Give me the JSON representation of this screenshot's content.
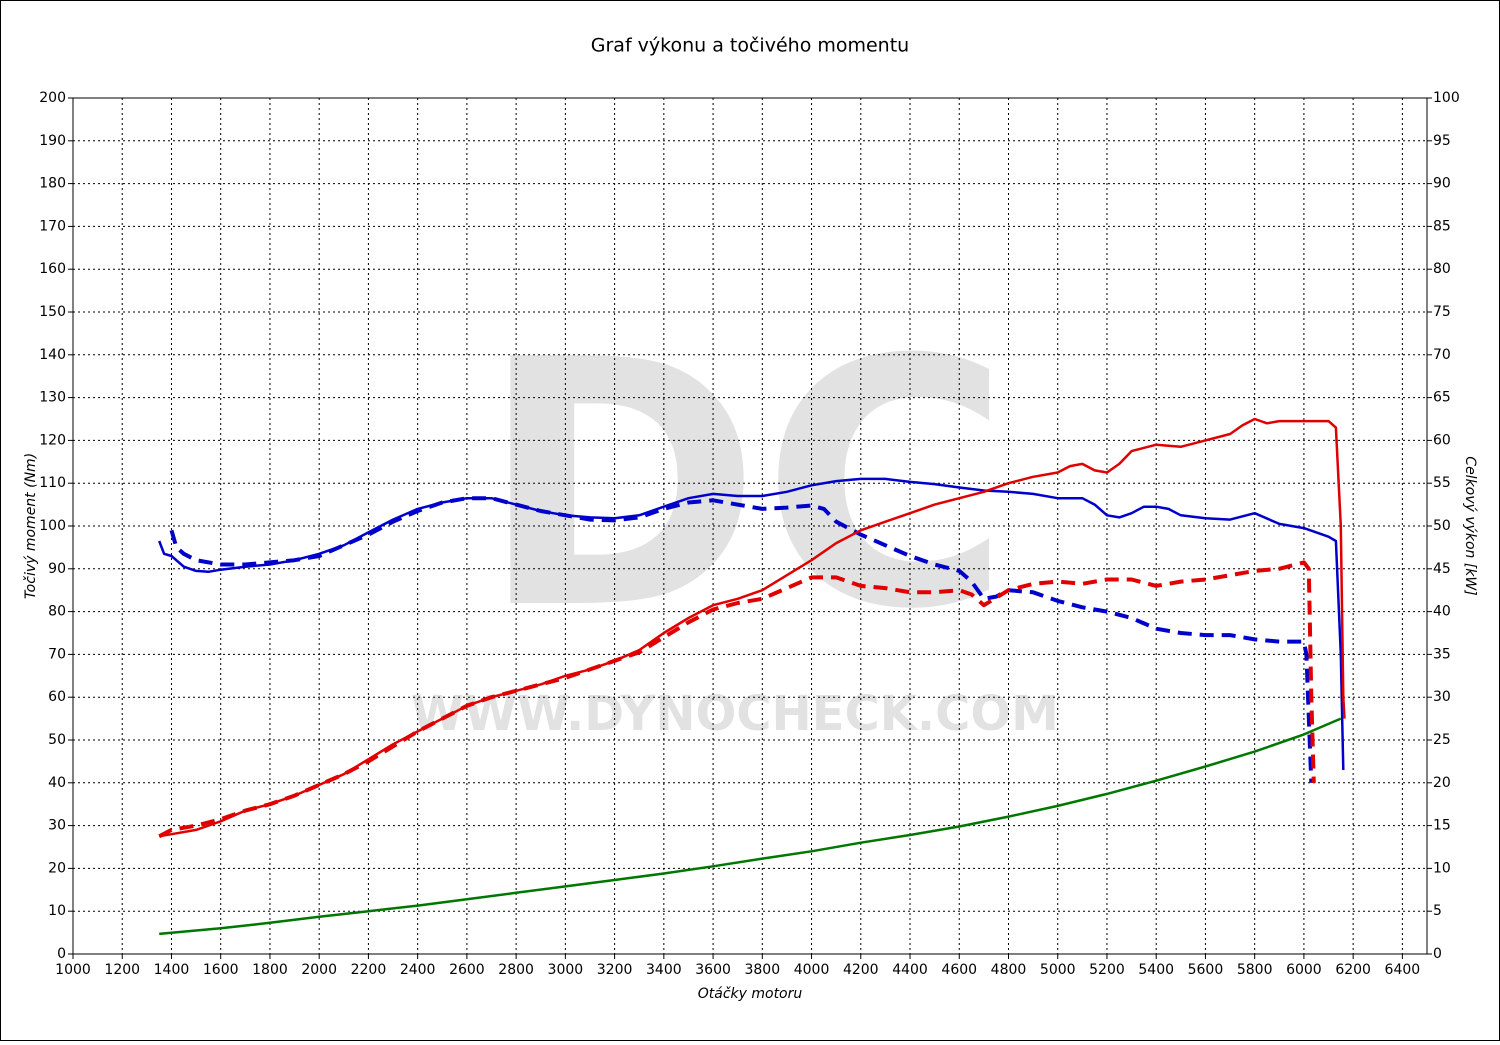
{
  "chart_data": {
    "type": "line",
    "title": "Graf výkonu a točivého momentu",
    "xlabel": "Otáčky motoru",
    "ylabel": "Točivý moment (Nm)",
    "y2label": "Celkový výkon [kW]",
    "watermark": "DC",
    "watermark_url": "WWW.DYNOCHECK.COM",
    "xlim": [
      1000,
      6500
    ],
    "xticks": [
      1000,
      1200,
      1400,
      1600,
      1800,
      2000,
      2200,
      2400,
      2600,
      2800,
      3000,
      3200,
      3400,
      3600,
      3800,
      4000,
      4200,
      4400,
      4600,
      4800,
      5000,
      5200,
      5400,
      5600,
      5800,
      6000,
      6200,
      6400
    ],
    "ylim": [
      0,
      200
    ],
    "yticks": [
      0,
      10,
      20,
      30,
      40,
      50,
      60,
      70,
      80,
      90,
      100,
      110,
      120,
      130,
      140,
      150,
      160,
      170,
      180,
      190,
      200
    ],
    "y2lim": [
      0,
      100
    ],
    "y2ticks": [
      0,
      5,
      10,
      15,
      20,
      25,
      30,
      35,
      40,
      45,
      50,
      55,
      60,
      65,
      70,
      75,
      80,
      85,
      90,
      95,
      100
    ],
    "grid": true,
    "series": [
      {
        "color": "#0000cc",
        "dash": false,
        "axis": "y",
        "x": [
          1350,
          1370,
          1400,
          1450,
          1500,
          1550,
          1600,
          1700,
          1800,
          1900,
          2000,
          2100,
          2200,
          2300,
          2400,
          2500,
          2600,
          2700,
          2800,
          2900,
          3000,
          3100,
          3200,
          3300,
          3400,
          3500,
          3600,
          3700,
          3800,
          3900,
          4000,
          4100,
          4200,
          4300,
          4400,
          4500,
          4600,
          4700,
          4800,
          4900,
          5000,
          5100,
          5150,
          5200,
          5250,
          5300,
          5350,
          5400,
          5450,
          5500,
          5600,
          5700,
          5800,
          5900,
          6000,
          6100,
          6130,
          6150,
          6160
        ],
        "values": [
          96.5,
          93.5,
          93,
          90.5,
          89.5,
          89.3,
          89.8,
          90.5,
          91,
          92,
          93.5,
          95.5,
          98.5,
          101.5,
          104,
          105.5,
          106.5,
          106.5,
          105,
          103.5,
          102.5,
          102,
          101.8,
          102.5,
          104.5,
          106.5,
          107.5,
          107,
          107,
          108,
          109.5,
          110.5,
          111,
          111,
          110.3,
          109.8,
          109,
          108.3,
          108,
          107.5,
          106.5,
          106.5,
          105,
          102.5,
          102,
          103,
          104.5,
          104.5,
          104,
          102.5,
          101.8,
          101.5,
          103,
          100.5,
          99.5,
          97.5,
          96.5,
          70,
          43
        ]
      },
      {
        "color": "#0000cc",
        "dash": true,
        "axis": "y",
        "x": [
          1400,
          1420,
          1450,
          1500,
          1600,
          1700,
          1800,
          1900,
          2000,
          2100,
          2200,
          2300,
          2400,
          2500,
          2600,
          2700,
          2800,
          2900,
          3000,
          3100,
          3200,
          3300,
          3400,
          3500,
          3600,
          3700,
          3800,
          3900,
          4000,
          4050,
          4100,
          4200,
          4300,
          4400,
          4500,
          4600,
          4650,
          4700,
          4750,
          4800,
          4900,
          5000,
          5100,
          5200,
          5300,
          5400,
          5500,
          5600,
          5700,
          5800,
          5900,
          6000,
          6010,
          6030
        ],
        "values": [
          99,
          95,
          93.5,
          92,
          91,
          91,
          91.5,
          92,
          93,
          95.5,
          98,
          101,
          103.5,
          105.5,
          106.5,
          106.5,
          105,
          103.5,
          102.5,
          101.5,
          101.3,
          102,
          104,
          105.5,
          106,
          105,
          104,
          104.3,
          104.8,
          104,
          101,
          98,
          95.5,
          93,
          91,
          89.5,
          87,
          83,
          83.5,
          85,
          84.5,
          82.5,
          81,
          80,
          78.5,
          76,
          75,
          74.5,
          74.5,
          73.5,
          73,
          73,
          70,
          40
        ]
      },
      {
        "color": "#e00000",
        "dash": false,
        "axis": "y2",
        "x": [
          1350,
          1400,
          1500,
          1600,
          1700,
          1800,
          1900,
          2000,
          2100,
          2200,
          2300,
          2400,
          2500,
          2600,
          2700,
          2800,
          2900,
          3000,
          3100,
          3200,
          3300,
          3400,
          3500,
          3600,
          3700,
          3800,
          3900,
          4000,
          4100,
          4200,
          4300,
          4400,
          4500,
          4600,
          4700,
          4800,
          4900,
          5000,
          5050,
          5100,
          5150,
          5200,
          5250,
          5300,
          5400,
          5500,
          5600,
          5700,
          5750,
          5800,
          5850,
          5900,
          6000,
          6100,
          6130,
          6150,
          6160,
          6165
        ],
        "values": [
          13.75,
          14,
          14.5,
          15.5,
          16.75,
          17.5,
          18.5,
          19.75,
          21,
          22.75,
          24.5,
          26,
          27.5,
          29,
          30,
          30.75,
          31.5,
          32.5,
          33.25,
          34.25,
          35.5,
          37.5,
          39.25,
          40.75,
          41.5,
          42.5,
          44.25,
          46,
          48,
          49.5,
          50.5,
          51.5,
          52.5,
          53.25,
          54,
          55,
          55.75,
          56.25,
          57,
          57.25,
          56.5,
          56.25,
          57.25,
          58.75,
          59.5,
          59.25,
          60,
          60.75,
          61.75,
          62.5,
          62,
          62.25,
          62.25,
          62.25,
          61.5,
          50,
          30,
          27.5
        ]
      },
      {
        "color": "#e00000",
        "dash": true,
        "axis": "y2",
        "x": [
          1350,
          1400,
          1500,
          1600,
          1700,
          1800,
          1900,
          2000,
          2100,
          2200,
          2300,
          2400,
          2500,
          2600,
          2700,
          2800,
          2900,
          3000,
          3100,
          3200,
          3300,
          3400,
          3500,
          3600,
          3700,
          3800,
          3900,
          4000,
          4100,
          4200,
          4300,
          4400,
          4500,
          4600,
          4650,
          4700,
          4800,
          4900,
          5000,
          5100,
          5200,
          5300,
          5400,
          5500,
          5600,
          5700,
          5800,
          5900,
          6000,
          6020,
          6030,
          6040
        ],
        "values": [
          13.75,
          14.5,
          15,
          15.75,
          16.75,
          17.5,
          18.5,
          19.75,
          21,
          22.5,
          24.25,
          26,
          27.5,
          29,
          30,
          30.75,
          31.5,
          32.25,
          33.25,
          34.25,
          35.25,
          37,
          38.75,
          40.25,
          41,
          41.5,
          42.75,
          44,
          44,
          43,
          42.75,
          42.25,
          42.25,
          42.5,
          42,
          40.75,
          42.5,
          43.25,
          43.5,
          43.25,
          43.75,
          43.75,
          43,
          43.5,
          43.75,
          44.25,
          44.75,
          45,
          45.75,
          45,
          30,
          20
        ]
      },
      {
        "color": "#007700",
        "dash": false,
        "axis": "y2",
        "x": [
          1350,
          1600,
          1800,
          2000,
          2200,
          2400,
          2600,
          2800,
          3000,
          3200,
          3400,
          3600,
          3800,
          4000,
          4200,
          4400,
          4600,
          4800,
          5000,
          5200,
          5400,
          5600,
          5800,
          6000,
          6150
        ],
        "values": [
          2.35,
          3,
          3.65,
          4.35,
          5,
          5.65,
          6.4,
          7.15,
          7.9,
          8.65,
          9.4,
          10.25,
          11.15,
          12,
          13,
          13.9,
          14.9,
          16.05,
          17.3,
          18.7,
          20.25,
          21.9,
          23.65,
          25.65,
          27.5
        ]
      }
    ]
  }
}
